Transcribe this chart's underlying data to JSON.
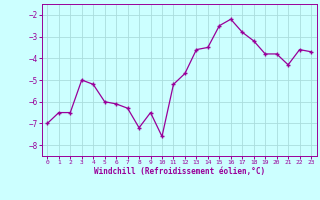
{
  "x": [
    0,
    1,
    2,
    3,
    4,
    5,
    6,
    7,
    8,
    9,
    10,
    11,
    12,
    13,
    14,
    15,
    16,
    17,
    18,
    19,
    20,
    21,
    22,
    23
  ],
  "y": [
    -7.0,
    -6.5,
    -6.5,
    -5.0,
    -5.2,
    -6.0,
    -6.1,
    -6.3,
    -7.2,
    -6.5,
    -7.6,
    -5.2,
    -4.7,
    -3.6,
    -3.5,
    -2.5,
    -2.2,
    -2.8,
    -3.2,
    -3.8,
    -3.8,
    -4.3,
    -3.6,
    -3.7
  ],
  "xlim": [
    -0.5,
    23.5
  ],
  "ylim": [
    -8.5,
    -1.5
  ],
  "yticks": [
    -8,
    -7,
    -6,
    -5,
    -4,
    -3,
    -2
  ],
  "xticks": [
    0,
    1,
    2,
    3,
    4,
    5,
    6,
    7,
    8,
    9,
    10,
    11,
    12,
    13,
    14,
    15,
    16,
    17,
    18,
    19,
    20,
    21,
    22,
    23
  ],
  "xlabel": "Windchill (Refroidissement éolien,°C)",
  "line_color": "#990099",
  "marker": "+",
  "bg_color": "#ccffff",
  "grid_color": "#aadddd",
  "tick_color": "#990099",
  "label_color": "#990099",
  "font_family": "monospace"
}
